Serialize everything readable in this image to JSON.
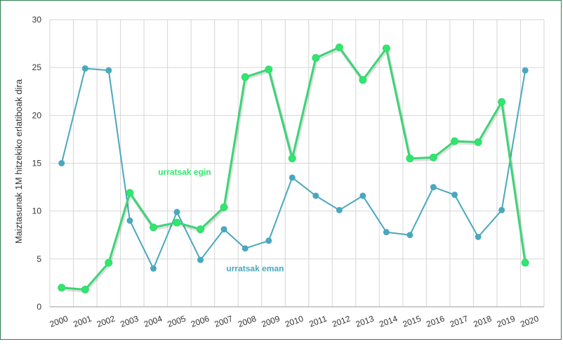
{
  "chart_data": {
    "type": "line",
    "title": "",
    "xlabel": "",
    "ylabel": "Maiztasunak 1M hitzekiko erlatiboak dira",
    "ylim": [
      0,
      30
    ],
    "yticks": [
      0,
      5,
      10,
      15,
      20,
      25,
      30
    ],
    "grid": true,
    "categories": [
      "2000",
      "2001",
      "2002",
      "2003",
      "2004",
      "2005",
      "2006",
      "2007",
      "2008",
      "2009",
      "2010",
      "2011",
      "2012",
      "2013",
      "2014",
      "2015",
      "2016",
      "2017",
      "2018",
      "2019",
      "2020"
    ],
    "series": [
      {
        "name": "urratsak egin",
        "color": "#2ee86b",
        "line_color": "#3cd477",
        "points": [
          {
            "x": 0.5,
            "y": 2.0
          },
          {
            "x": 1.5,
            "y": 1.8
          },
          {
            "x": 2.5,
            "y": 4.6
          },
          {
            "x": 3.4,
            "y": 11.9
          },
          {
            "x": 4.4,
            "y": 8.3
          },
          {
            "x": 5.4,
            "y": 8.8
          },
          {
            "x": 6.4,
            "y": 8.1
          },
          {
            "x": 7.4,
            "y": 10.4
          },
          {
            "x": 8.3,
            "y": 24.0
          },
          {
            "x": 9.3,
            "y": 24.8
          },
          {
            "x": 10.3,
            "y": 15.5
          },
          {
            "x": 11.3,
            "y": 26.0
          },
          {
            "x": 12.3,
            "y": 27.1
          },
          {
            "x": 13.3,
            "y": 23.7
          },
          {
            "x": 14.3,
            "y": 27.0
          },
          {
            "x": 15.3,
            "y": 15.5
          },
          {
            "x": 16.3,
            "y": 15.6
          },
          {
            "x": 17.2,
            "y": 17.3
          },
          {
            "x": 18.2,
            "y": 17.2
          },
          {
            "x": 19.2,
            "y": 21.4
          },
          {
            "x": 20.2,
            "y": 4.6
          }
        ]
      },
      {
        "name": "urratsak eman",
        "color": "#4aa8bd",
        "line_color": "#4aa8bd",
        "points": [
          {
            "x": 0.5,
            "y": 15.0
          },
          {
            "x": 1.5,
            "y": 24.9
          },
          {
            "x": 2.5,
            "y": 24.7
          },
          {
            "x": 3.4,
            "y": 9.0
          },
          {
            "x": 4.4,
            "y": 4.0
          },
          {
            "x": 5.4,
            "y": 9.9
          },
          {
            "x": 6.4,
            "y": 4.9
          },
          {
            "x": 7.4,
            "y": 8.1
          },
          {
            "x": 8.3,
            "y": 6.1
          },
          {
            "x": 9.3,
            "y": 6.9
          },
          {
            "x": 10.3,
            "y": 13.5
          },
          {
            "x": 11.3,
            "y": 11.6
          },
          {
            "x": 12.3,
            "y": 10.1
          },
          {
            "x": 13.3,
            "y": 11.6
          },
          {
            "x": 14.3,
            "y": 7.8
          },
          {
            "x": 15.3,
            "y": 7.5
          },
          {
            "x": 16.3,
            "y": 12.5
          },
          {
            "x": 17.2,
            "y": 11.7
          },
          {
            "x": 18.2,
            "y": 7.3
          },
          {
            "x": 19.2,
            "y": 10.1
          },
          {
            "x": 20.2,
            "y": 24.7
          }
        ]
      }
    ],
    "annotations": [
      {
        "text": "urratsak egin",
        "x": 4.6,
        "y": 13.8,
        "color": "#2ee86b"
      },
      {
        "text": "urratsak eman",
        "x": 7.5,
        "y": 3.7,
        "color": "#4aa8bd"
      }
    ]
  }
}
